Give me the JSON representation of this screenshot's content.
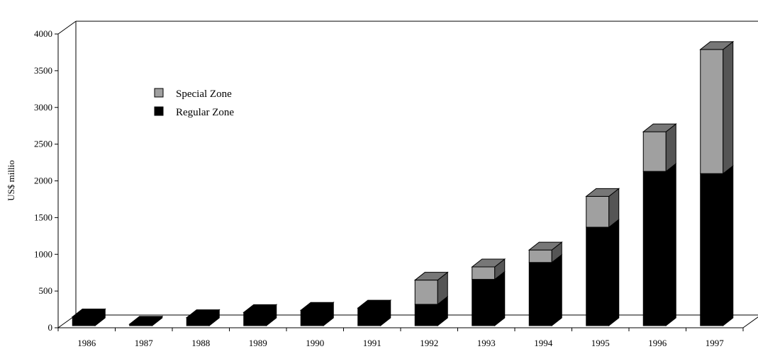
{
  "chart_data": {
    "type": "bar",
    "stacked": true,
    "three_d": true,
    "categories": [
      "1986",
      "1987",
      "1988",
      "1989",
      "1990",
      "1991",
      "1992",
      "1993",
      "1994",
      "1995",
      "1996",
      "1997"
    ],
    "series": [
      {
        "name": "Regular Zone",
        "color": "#000000",
        "values": [
          120,
          20,
          110,
          180,
          210,
          240,
          290,
          630,
          860,
          1340,
          2100,
          2070
        ]
      },
      {
        "name": "Special Zone",
        "color": "#a0a0a0",
        "values": [
          0,
          0,
          0,
          0,
          0,
          0,
          330,
          170,
          170,
          420,
          540,
          1690
        ]
      }
    ],
    "ylabel": "US$ millio",
    "ylim": [
      0,
      4000
    ],
    "yticks": [
      0,
      500,
      1000,
      1500,
      2000,
      2500,
      3000,
      3500,
      4000
    ],
    "grid": false,
    "legend_position": "top-left"
  }
}
